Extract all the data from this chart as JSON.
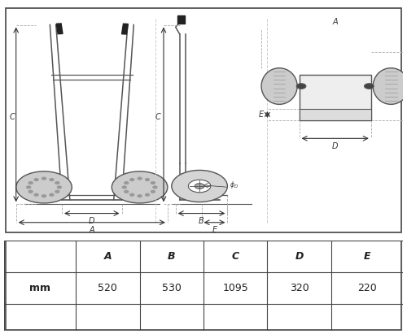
{
  "bg_color": "#ffffff",
  "border_color": "#333333",
  "line_color": "#555555",
  "dim_color": "#333333",
  "wheel_color": "#aaaaaa",
  "handle_color": "#333333",
  "table_headers": [
    "",
    "A",
    "B",
    "C",
    "D",
    "E"
  ],
  "table_row1": [
    "",
    "A",
    "B",
    "C",
    "D",
    "E"
  ],
  "table_row2": [
    "mm",
    "520",
    "530",
    "1095",
    "320",
    "220"
  ],
  "table_header_fontsize": 9,
  "table_value_fontsize": 9,
  "dim_fontsize": 7,
  "annotation_fontsize": 6.5
}
